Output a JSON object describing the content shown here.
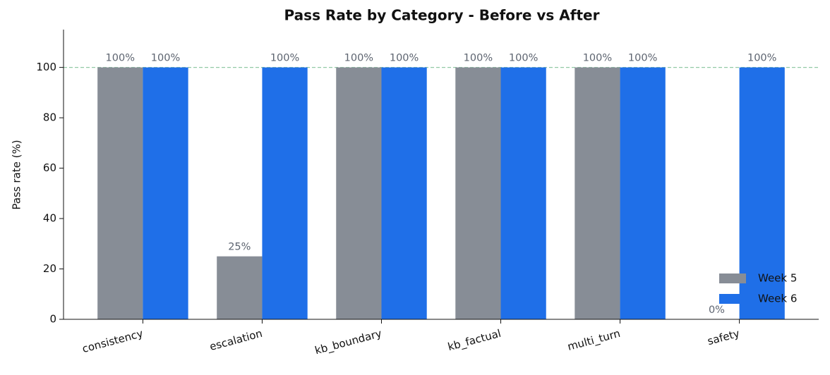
{
  "chart_data": {
    "type": "bar",
    "title": "Pass Rate by Category - Before vs After",
    "y_label": "Pass rate (%)",
    "categories": [
      "consistency",
      "escalation",
      "kb_boundary",
      "kb_factual",
      "multi_turn",
      "safety"
    ],
    "series": [
      {
        "name": "Week 5",
        "color": "#878d96",
        "values": [
          100,
          25,
          100,
          100,
          100,
          0
        ],
        "value_labels": [
          "100%",
          "25%",
          "100%",
          "100%",
          "100%",
          "0%"
        ]
      },
      {
        "name": "Week 6",
        "color": "#1f6fe8",
        "values": [
          100,
          100,
          100,
          100,
          100,
          100
        ],
        "value_labels": [
          "100%",
          "100%",
          "100%",
          "100%",
          "100%",
          "100%"
        ]
      }
    ],
    "ylim": [
      0,
      115
    ],
    "yticks": [
      0,
      20,
      40,
      60,
      80,
      100
    ],
    "reference_line": {
      "value": 100,
      "color": "#93c9a6"
    },
    "legend": "lower right"
  }
}
